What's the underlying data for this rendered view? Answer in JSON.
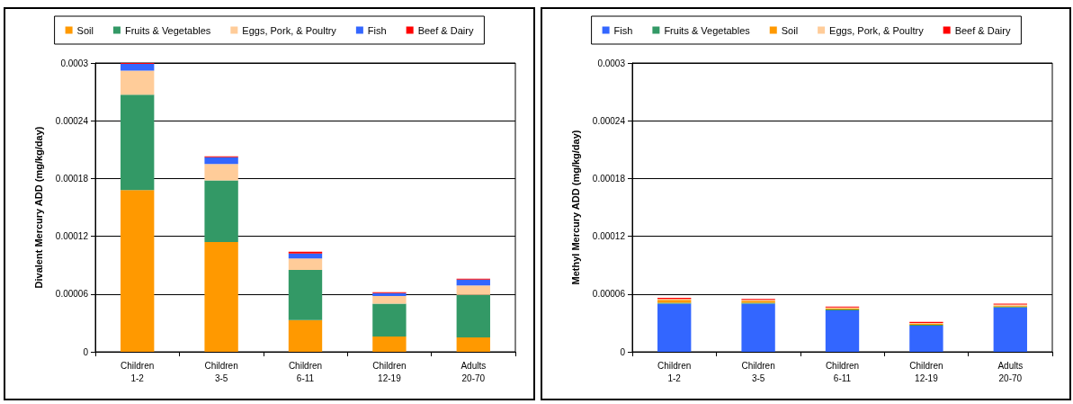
{
  "chart_data": [
    {
      "type": "bar",
      "ylabel": "Divalent Mercury ADD (mg/kg/day)",
      "categories": [
        "Children\n1-2",
        "Children\n3-5",
        "Children\n6-11",
        "Children\n12-19",
        "Adults\n20-70"
      ],
      "stacked": true,
      "ylim": [
        0,
        0.0003
      ],
      "yticks": [
        0,
        {
          "value": 6e-05,
          "label": "0.00006"
        },
        0.00012,
        0.00018,
        0.00024,
        0.0003
      ],
      "grid": "y",
      "legend": "top",
      "series": [
        {
          "name": "Soil",
          "color": "#ff9900",
          "values": [
            0.000168,
            0.000114,
            3.3e-05,
            1.6e-05,
            1.5e-05
          ]
        },
        {
          "name": "Fruits & Vegetables",
          "color": "#339966",
          "values": [
            9.9e-05,
            6.4e-05,
            5.2e-05,
            3.4e-05,
            4.4e-05
          ]
        },
        {
          "name": "Eggs, Pork, & Poultry",
          "color": "#ffcc99",
          "values": [
            2.5e-05,
            1.7e-05,
            1.2e-05,
            8e-06,
            1e-05
          ]
        },
        {
          "name": "Fish",
          "color": "#3366ff",
          "values": [
            7e-06,
            7e-06,
            5e-06,
            3e-06,
            6e-06
          ]
        },
        {
          "name": "Beef & Dairy",
          "color": "#ff0000",
          "values": [
            1e-06,
            1e-06,
            2e-06,
            1e-06,
            1e-06
          ]
        }
      ]
    },
    {
      "type": "bar",
      "ylabel": "Methyl Mercury ADD (mg/kg/day)",
      "categories": [
        "Children\n1-2",
        "Children\n3-5",
        "Children\n6-11",
        "Children\n12-19",
        "Adults\n20-70"
      ],
      "stacked": true,
      "ylim": [
        0,
        0.0003
      ],
      "yticks": [
        0,
        {
          "value": 6e-05,
          "label": "0.00006"
        },
        0.00012,
        0.00018,
        0.00024,
        0.0003
      ],
      "grid": "y",
      "legend": "top",
      "series": [
        {
          "name": "Fish",
          "color": "#3366ff",
          "values": [
            5e-05,
            5e-05,
            4.3e-05,
            2.7e-05,
            4.6e-05
          ]
        },
        {
          "name": "Fruits & Vegetables",
          "color": "#339966",
          "values": [
            1e-06,
            1e-06,
            1e-06,
            1e-06,
            1e-06
          ]
        },
        {
          "name": "Soil",
          "color": "#ff9900",
          "values": [
            3e-06,
            2e-06,
            1e-06,
            1e-06,
            1e-06
          ]
        },
        {
          "name": "Eggs, Pork, & Poultry",
          "color": "#ffcc99",
          "values": [
            1e-06,
            1e-06,
            1e-06,
            1e-06,
            1e-06
          ]
        },
        {
          "name": "Beef & Dairy",
          "color": "#ff0000",
          "values": [
            1e-06,
            1e-06,
            1e-06,
            1e-06,
            1e-06
          ]
        }
      ]
    }
  ]
}
